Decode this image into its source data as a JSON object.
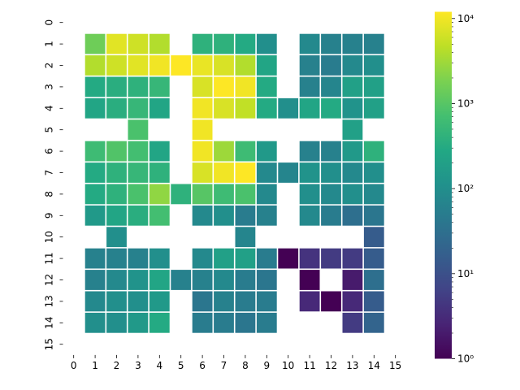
{
  "chart_data": {
    "type": "heatmap",
    "title": "",
    "xlabel": "",
    "ylabel": "",
    "x_ticks": [
      0,
      1,
      2,
      3,
      4,
      5,
      6,
      7,
      8,
      9,
      10,
      11,
      12,
      13,
      14,
      15
    ],
    "y_ticks": [
      0,
      1,
      2,
      3,
      4,
      5,
      6,
      7,
      8,
      9,
      10,
      11,
      12,
      13,
      14,
      15
    ],
    "color_scale": "log",
    "colormap": "viridis",
    "vmin": 1,
    "vmax": 12000,
    "grid": false,
    "colorbar": {
      "position": "right",
      "ticks": [
        {
          "value": 1,
          "label": "10⁰"
        },
        {
          "value": 10,
          "label": "10¹"
        },
        {
          "value": 100,
          "label": "10²"
        },
        {
          "value": 1000,
          "label": "10³"
        },
        {
          "value": 10000,
          "label": "10⁴"
        }
      ]
    },
    "cells": [
      [
        1,
        1,
        1500
      ],
      [
        1,
        2,
        8000
      ],
      [
        1,
        3,
        6000
      ],
      [
        1,
        4,
        4000
      ],
      [
        1,
        6,
        400
      ],
      [
        1,
        7,
        400
      ],
      [
        1,
        8,
        300
      ],
      [
        1,
        9,
        100
      ],
      [
        1,
        11,
        80
      ],
      [
        1,
        12,
        60
      ],
      [
        1,
        13,
        60
      ],
      [
        1,
        14,
        60
      ],
      [
        2,
        1,
        4000
      ],
      [
        2,
        2,
        6000
      ],
      [
        2,
        3,
        8000
      ],
      [
        2,
        4,
        10000
      ],
      [
        2,
        5,
        12000
      ],
      [
        2,
        6,
        9000
      ],
      [
        2,
        7,
        7000
      ],
      [
        2,
        8,
        4000
      ],
      [
        2,
        9,
        250
      ],
      [
        2,
        11,
        60
      ],
      [
        2,
        12,
        50
      ],
      [
        2,
        13,
        80
      ],
      [
        2,
        14,
        100
      ],
      [
        3,
        1,
        300
      ],
      [
        3,
        2,
        350
      ],
      [
        3,
        3,
        400
      ],
      [
        3,
        4,
        500
      ],
      [
        3,
        6,
        7000
      ],
      [
        3,
        7,
        12000
      ],
      [
        3,
        8,
        10000
      ],
      [
        3,
        9,
        300
      ],
      [
        3,
        11,
        60
      ],
      [
        3,
        12,
        70
      ],
      [
        3,
        13,
        200
      ],
      [
        3,
        14,
        200
      ],
      [
        4,
        1,
        250
      ],
      [
        4,
        2,
        350
      ],
      [
        4,
        3,
        500
      ],
      [
        4,
        4,
        250
      ],
      [
        4,
        6,
        10000
      ],
      [
        4,
        7,
        7000
      ],
      [
        4,
        8,
        5000
      ],
      [
        4,
        9,
        300
      ],
      [
        4,
        10,
        100
      ],
      [
        4,
        11,
        250
      ],
      [
        4,
        12,
        300
      ],
      [
        4,
        13,
        120
      ],
      [
        4,
        14,
        200
      ],
      [
        5,
        3,
        800
      ],
      [
        5,
        6,
        10000
      ],
      [
        5,
        13,
        200
      ],
      [
        6,
        1,
        600
      ],
      [
        6,
        2,
        900
      ],
      [
        6,
        3,
        700
      ],
      [
        6,
        4,
        250
      ],
      [
        6,
        6,
        10000
      ],
      [
        6,
        7,
        3000
      ],
      [
        6,
        8,
        600
      ],
      [
        6,
        9,
        150
      ],
      [
        6,
        11,
        60
      ],
      [
        6,
        12,
        60
      ],
      [
        6,
        13,
        150
      ],
      [
        6,
        14,
        400
      ],
      [
        7,
        1,
        300
      ],
      [
        7,
        2,
        400
      ],
      [
        7,
        3,
        500
      ],
      [
        7,
        4,
        400
      ],
      [
        7,
        6,
        7000
      ],
      [
        7,
        7,
        10000
      ],
      [
        7,
        8,
        12000
      ],
      [
        7,
        9,
        80
      ],
      [
        7,
        10,
        70
      ],
      [
        7,
        11,
        120
      ],
      [
        7,
        12,
        100
      ],
      [
        7,
        13,
        80
      ],
      [
        7,
        14,
        100
      ],
      [
        8,
        1,
        300
      ],
      [
        8,
        2,
        400
      ],
      [
        8,
        3,
        800
      ],
      [
        8,
        4,
        2500
      ],
      [
        8,
        5,
        400
      ],
      [
        8,
        6,
        1000
      ],
      [
        8,
        7,
        600
      ],
      [
        8,
        8,
        800
      ],
      [
        8,
        9,
        80
      ],
      [
        8,
        11,
        100
      ],
      [
        8,
        12,
        80
      ],
      [
        8,
        13,
        100
      ],
      [
        8,
        14,
        80
      ],
      [
        9,
        1,
        150
      ],
      [
        9,
        2,
        250
      ],
      [
        9,
        3,
        350
      ],
      [
        9,
        4,
        700
      ],
      [
        9,
        6,
        80
      ],
      [
        9,
        7,
        100
      ],
      [
        9,
        8,
        50
      ],
      [
        9,
        9,
        60
      ],
      [
        9,
        11,
        80
      ],
      [
        9,
        12,
        50
      ],
      [
        9,
        13,
        30
      ],
      [
        9,
        14,
        40
      ],
      [
        10,
        2,
        100
      ],
      [
        10,
        8,
        70
      ],
      [
        10,
        14,
        15
      ],
      [
        11,
        1,
        60
      ],
      [
        11,
        2,
        60
      ],
      [
        11,
        3,
        60
      ],
      [
        11,
        4,
        100
      ],
      [
        11,
        6,
        80
      ],
      [
        11,
        7,
        200
      ],
      [
        11,
        8,
        200
      ],
      [
        11,
        9,
        50
      ],
      [
        11,
        10,
        1
      ],
      [
        11,
        11,
        4
      ],
      [
        11,
        12,
        5
      ],
      [
        11,
        13,
        5
      ],
      [
        11,
        14,
        15
      ],
      [
        12,
        1,
        60
      ],
      [
        12,
        2,
        80
      ],
      [
        12,
        3,
        120
      ],
      [
        12,
        4,
        250
      ],
      [
        12,
        5,
        60
      ],
      [
        12,
        6,
        60
      ],
      [
        12,
        7,
        80
      ],
      [
        12,
        8,
        50
      ],
      [
        12,
        9,
        40
      ],
      [
        12,
        11,
        1
      ],
      [
        12,
        13,
        2
      ],
      [
        12,
        14,
        30
      ],
      [
        13,
        1,
        80
      ],
      [
        13,
        2,
        100
      ],
      [
        13,
        3,
        100
      ],
      [
        13,
        4,
        150
      ],
      [
        13,
        6,
        40
      ],
      [
        13,
        7,
        60
      ],
      [
        13,
        8,
        50
      ],
      [
        13,
        9,
        50
      ],
      [
        13,
        11,
        3
      ],
      [
        13,
        12,
        1
      ],
      [
        13,
        13,
        3
      ],
      [
        13,
        14,
        15
      ],
      [
        14,
        1,
        100
      ],
      [
        14,
        2,
        100
      ],
      [
        14,
        3,
        150
      ],
      [
        14,
        4,
        300
      ],
      [
        14,
        6,
        50
      ],
      [
        14,
        7,
        50
      ],
      [
        14,
        8,
        40
      ],
      [
        14,
        9,
        50
      ],
      [
        14,
        13,
        5
      ],
      [
        14,
        14,
        20
      ]
    ]
  }
}
